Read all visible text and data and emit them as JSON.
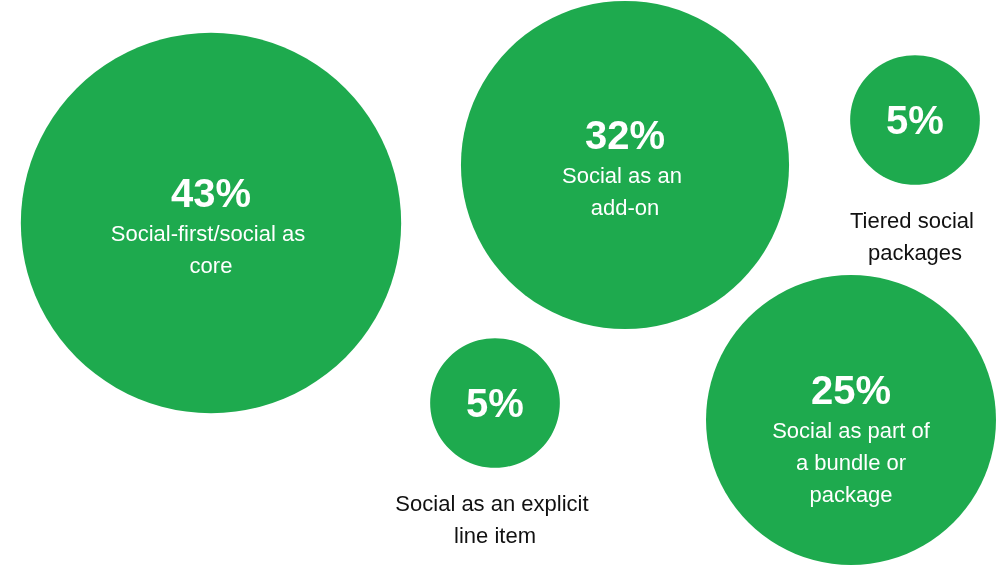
{
  "chart_data": {
    "type": "other",
    "categories": [
      "Social-first/social as core",
      "Social as an add-on",
      "Tiered social packages",
      "Social as an explicit line item",
      "Social as part of a bundle or package"
    ],
    "values": [
      43,
      32,
      5,
      5,
      25
    ],
    "value_labels": [
      "43%",
      "32%",
      "5%",
      "5%",
      "25%"
    ],
    "color": "#1eaa4e"
  }
}
